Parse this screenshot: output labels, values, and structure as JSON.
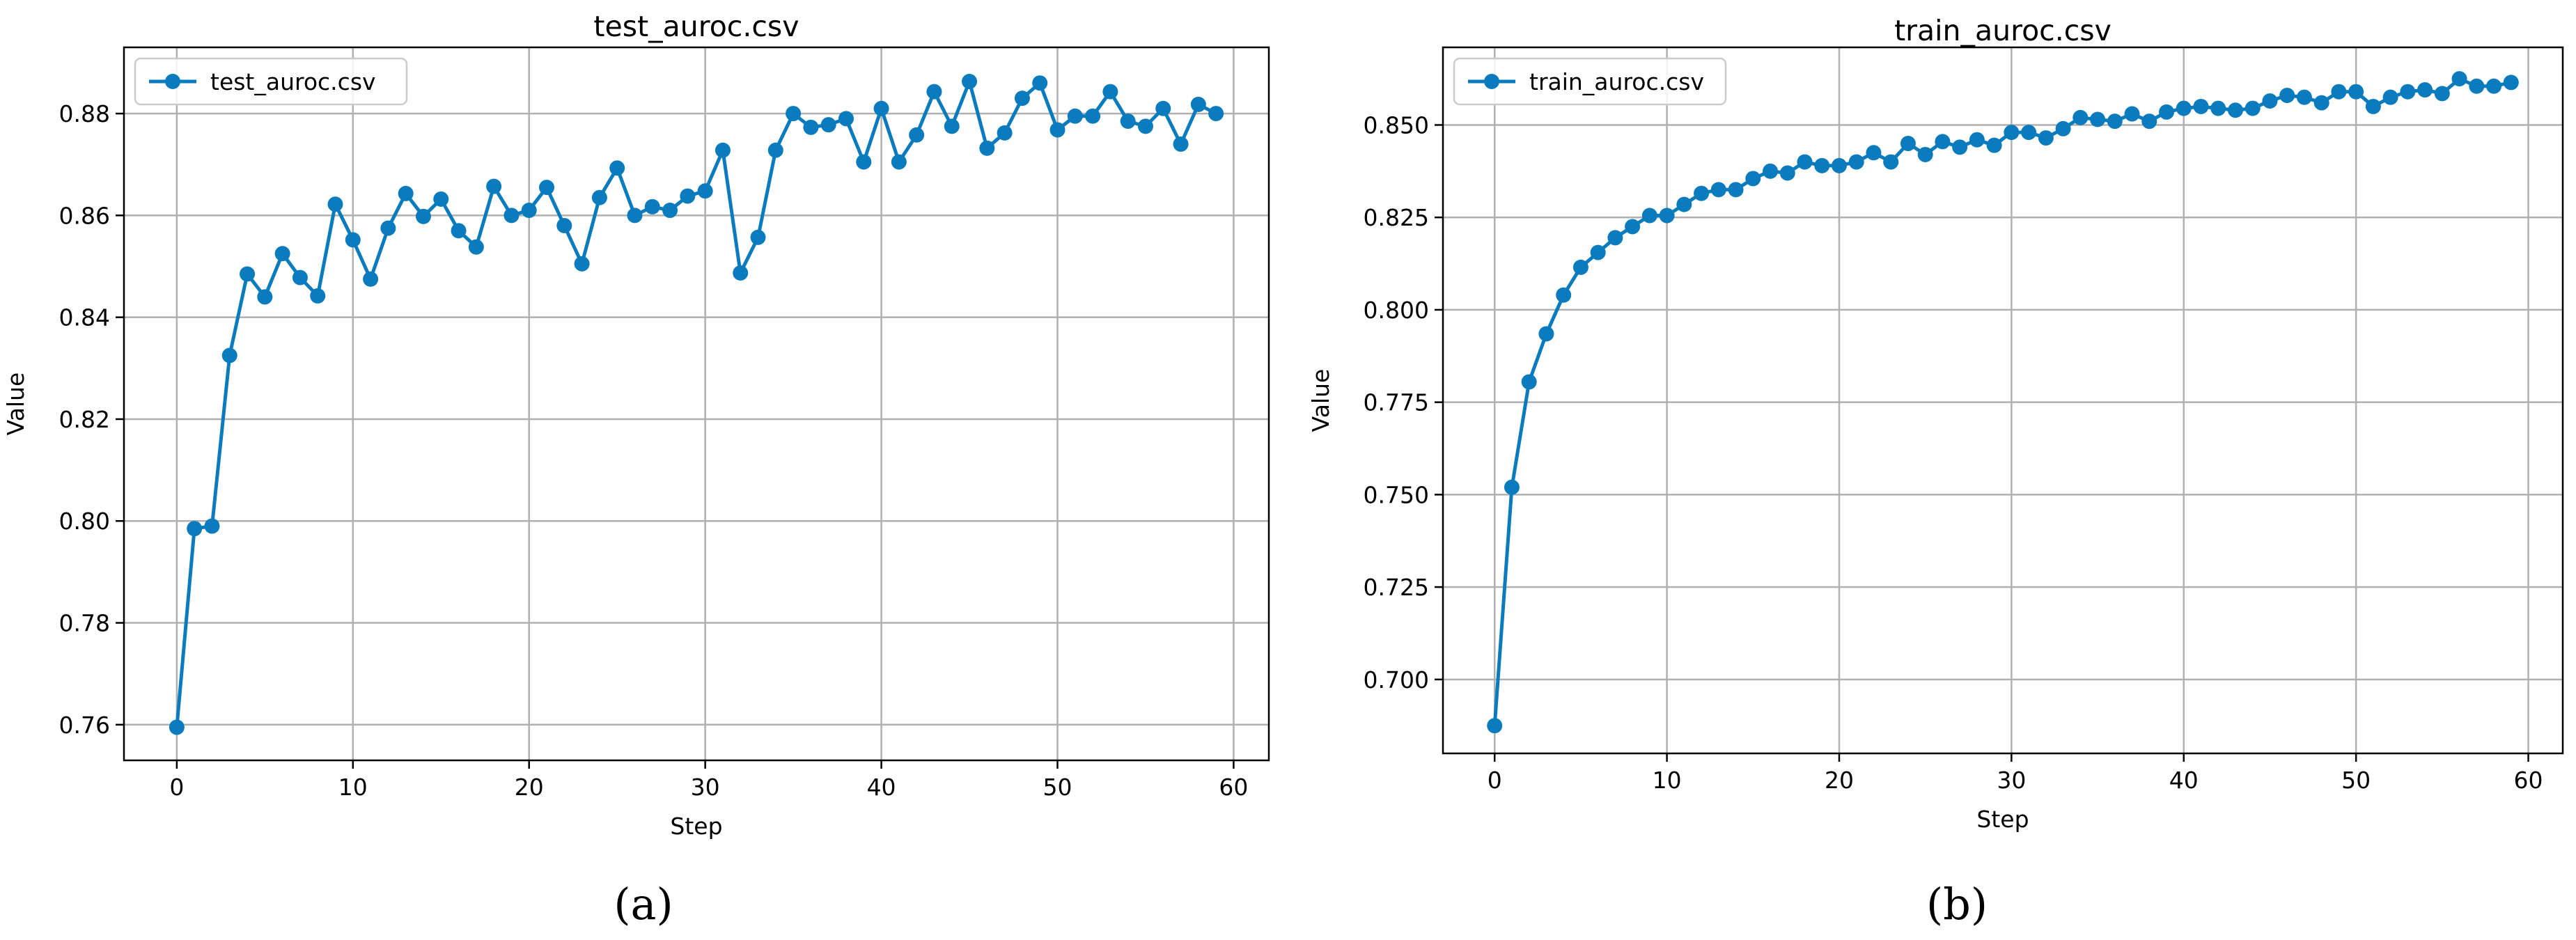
{
  "chart_data": [
    {
      "type": "line",
      "panel": "(a)",
      "title": "test_auroc.csv",
      "xlabel": "Step",
      "ylabel": "Value",
      "xlim": [
        -3,
        62
      ],
      "ylim": [
        0.753,
        0.893
      ],
      "xticks": [
        0,
        10,
        20,
        30,
        40,
        50,
        60
      ],
      "xtick_labels": [
        "0",
        "10",
        "20",
        "30",
        "40",
        "50",
        "60"
      ],
      "yticks": [
        0.76,
        0.78,
        0.8,
        0.82,
        0.84,
        0.86,
        0.88
      ],
      "ytick_labels": [
        "0.76",
        "0.78",
        "0.80",
        "0.82",
        "0.84",
        "0.86",
        "0.88"
      ],
      "grid": true,
      "legend": "upper-left",
      "color": "#0a7bbd",
      "series": [
        {
          "name": "test_auroc.csv",
          "x": [
            0,
            1,
            2,
            3,
            4,
            5,
            6,
            7,
            8,
            9,
            10,
            11,
            12,
            13,
            14,
            15,
            16,
            17,
            18,
            19,
            20,
            21,
            22,
            23,
            24,
            25,
            26,
            27,
            28,
            29,
            30,
            31,
            32,
            33,
            34,
            35,
            36,
            37,
            38,
            39,
            40,
            41,
            42,
            43,
            44,
            45,
            46,
            47,
            48,
            49,
            50,
            51,
            52,
            53,
            54,
            55,
            56,
            57,
            58,
            59
          ],
          "y": [
            0.7595,
            0.7985,
            0.799,
            0.8325,
            0.8485,
            0.844,
            0.8525,
            0.8478,
            0.8442,
            0.8622,
            0.8552,
            0.8475,
            0.8575,
            0.8643,
            0.8598,
            0.8632,
            0.857,
            0.8538,
            0.8657,
            0.86,
            0.861,
            0.8655,
            0.858,
            0.8505,
            0.8635,
            0.8693,
            0.86,
            0.8617,
            0.861,
            0.8638,
            0.8648,
            0.8728,
            0.8487,
            0.8557,
            0.8728,
            0.88,
            0.8773,
            0.8778,
            0.879,
            0.8705,
            0.881,
            0.8705,
            0.8758,
            0.8843,
            0.8775,
            0.8863,
            0.8732,
            0.8762,
            0.883,
            0.886,
            0.8768,
            0.8795,
            0.8795,
            0.8843,
            0.8785,
            0.8775,
            0.881,
            0.874,
            0.8818,
            0.88
          ]
        }
      ]
    },
    {
      "type": "line",
      "panel": "(b)",
      "title": "train_auroc.csv",
      "xlabel": "Step",
      "ylabel": "Value",
      "xlim": [
        -3,
        62
      ],
      "ylim": [
        0.68,
        0.871
      ],
      "xticks": [
        0,
        10,
        20,
        30,
        40,
        50,
        60
      ],
      "xtick_labels": [
        "0",
        "10",
        "20",
        "30",
        "40",
        "50",
        "60"
      ],
      "yticks": [
        0.7,
        0.725,
        0.75,
        0.775,
        0.8,
        0.825,
        0.85
      ],
      "ytick_labels": [
        "0.700",
        "0.725",
        "0.750",
        "0.775",
        "0.800",
        "0.825",
        "0.850"
      ],
      "grid": true,
      "legend": "upper-left",
      "color": "#0a7bbd",
      "series": [
        {
          "name": "train_auroc.csv",
          "x": [
            0,
            1,
            2,
            3,
            4,
            5,
            6,
            7,
            8,
            9,
            10,
            11,
            12,
            13,
            14,
            15,
            16,
            17,
            18,
            19,
            20,
            21,
            22,
            23,
            24,
            25,
            26,
            27,
            28,
            29,
            30,
            31,
            32,
            33,
            34,
            35,
            36,
            37,
            38,
            39,
            40,
            41,
            42,
            43,
            44,
            45,
            46,
            47,
            48,
            49,
            50,
            51,
            52,
            53,
            54,
            55,
            56,
            57,
            58,
            59
          ],
          "y": [
            0.6875,
            0.752,
            0.7805,
            0.7935,
            0.804,
            0.8115,
            0.8155,
            0.8195,
            0.8225,
            0.8255,
            0.8255,
            0.8285,
            0.8315,
            0.8325,
            0.8325,
            0.8355,
            0.8375,
            0.837,
            0.84,
            0.839,
            0.839,
            0.84,
            0.8425,
            0.84,
            0.845,
            0.842,
            0.8455,
            0.844,
            0.846,
            0.8445,
            0.848,
            0.848,
            0.8465,
            0.849,
            0.852,
            0.8515,
            0.851,
            0.853,
            0.851,
            0.8535,
            0.8545,
            0.855,
            0.8545,
            0.854,
            0.8545,
            0.8565,
            0.858,
            0.8575,
            0.856,
            0.859,
            0.859,
            0.855,
            0.8575,
            0.859,
            0.8595,
            0.8585,
            0.8625,
            0.8605,
            0.8605,
            0.8615
          ]
        }
      ]
    }
  ]
}
